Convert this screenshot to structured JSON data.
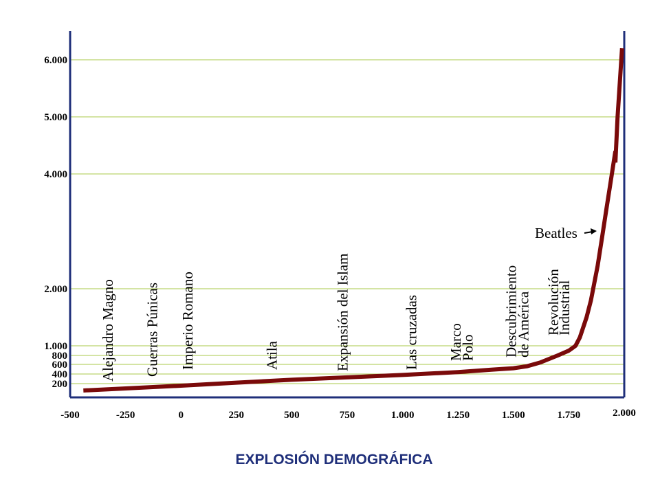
{
  "chart_data": {
    "type": "line",
    "title": "EXPLOSIÓN DEMOGRÁFICA",
    "xlabel": "",
    "ylabel": "",
    "x_ticks": [
      "-500",
      "-250",
      "0",
      "250",
      "500",
      "750",
      "1.000",
      "1.250",
      "1.500",
      "1.750",
      "2.000"
    ],
    "x_tick_values": [
      -500,
      -250,
      0,
      250,
      500,
      750,
      1000,
      1250,
      1500,
      1750,
      2000
    ],
    "y_ticks": [
      "200",
      "400",
      "600",
      "800",
      "1.000",
      "2.000",
      "4.000",
      "5.000",
      "6.000"
    ],
    "y_tick_values": [
      200,
      400,
      600,
      800,
      1000,
      2000,
      4000,
      5000,
      6000
    ],
    "grid": true,
    "line_color": "#7a0a0a",
    "axis_color": "#1f2f7a",
    "grid_color": "#a8c84a",
    "series": [
      {
        "x": [
          -440,
          -250,
          0,
          250,
          500,
          750,
          1000,
          1250,
          1400,
          1500,
          1560,
          1620,
          1700,
          1750,
          1780,
          1800,
          1830,
          1850,
          1880,
          1900,
          1920,
          1940,
          1960,
          1960,
          1970,
          1990
        ],
        "y": [
          100,
          130,
          170,
          220,
          280,
          330,
          380,
          440,
          490,
          520,
          560,
          640,
          800,
          900,
          1000,
          1150,
          1500,
          1800,
          2400,
          2900,
          3400,
          3900,
          4400,
          4200,
          5000,
          6200
        ]
      }
    ],
    "annotations": [
      {
        "label": "Alejandro Magno",
        "x": -330
      },
      {
        "label": "Guerras Púnicas",
        "x": -130
      },
      {
        "label": "Imperio Romano",
        "x": 30
      },
      {
        "label": "Atila",
        "x": 410
      },
      {
        "label": "Expansión del Islam",
        "x": 730
      },
      {
        "label": "Las cruzadas",
        "x": 1040
      },
      {
        "label": "Marco",
        "x": 1240
      },
      {
        "label": "Polo",
        "x": 1295
      },
      {
        "label": "Descubrimiento",
        "x": 1490
      },
      {
        "label": "de América",
        "x": 1545
      },
      {
        "label": "Revolución",
        "x": 1680
      },
      {
        "label": "Industrial",
        "x": 1730
      },
      {
        "label": "Beatles",
        "x": 1960
      }
    ]
  }
}
